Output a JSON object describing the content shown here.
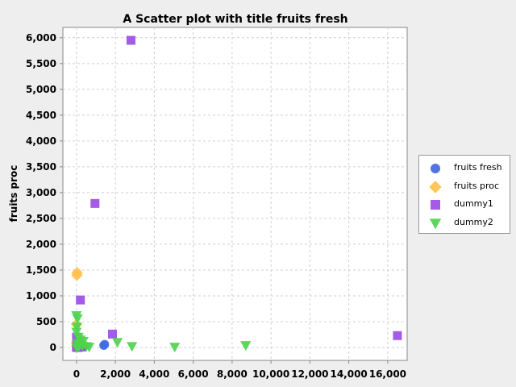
{
  "chart_data": {
    "type": "scatter",
    "title": "A Scatter plot with title fruits fresh",
    "xlabel": "",
    "ylabel": "fruits proc",
    "xlim": [
      -700,
      17000
    ],
    "ylim": [
      -250,
      6200
    ],
    "xticks": [
      0,
      2000,
      4000,
      6000,
      8000,
      10000,
      12000,
      14000,
      16000
    ],
    "xtick_labels": [
      "0",
      "2,000",
      "4,000",
      "6,000",
      "8,000",
      "10,000",
      "12,000",
      "14,000",
      "16,000"
    ],
    "yticks": [
      0,
      500,
      1000,
      1500,
      2000,
      2500,
      3000,
      3500,
      4000,
      4500,
      5000,
      5500,
      6000
    ],
    "ytick_labels": [
      "0",
      "500",
      "1,000",
      "1,500",
      "2,000",
      "2,500",
      "3,000",
      "3,500",
      "4,000",
      "4,500",
      "5,000",
      "5,500",
      "6,000"
    ],
    "grid": true,
    "legend_position": "right",
    "series": [
      {
        "name": "fruits fresh",
        "color": "#4169e1",
        "marker": "circle",
        "points": [
          [
            0,
            0
          ],
          [
            40,
            20
          ],
          [
            80,
            60
          ],
          [
            120,
            10
          ],
          [
            200,
            40
          ],
          [
            300,
            15
          ],
          [
            1400,
            40
          ],
          [
            1450,
            60
          ],
          [
            10,
            30
          ],
          [
            60,
            5
          ],
          [
            150,
            25
          ],
          [
            250,
            50
          ]
        ]
      },
      {
        "name": "fruits proc",
        "color": "#ffc14d",
        "marker": "diamond",
        "points": [
          [
            30,
            1450
          ],
          [
            20,
            1400
          ],
          [
            0,
            450
          ],
          [
            10,
            30
          ],
          [
            60,
            10
          ],
          [
            100,
            50
          ],
          [
            150,
            80
          ],
          [
            0,
            100
          ]
        ]
      },
      {
        "name": "dummy1",
        "color": "#9b4de6",
        "marker": "square",
        "points": [
          [
            2800,
            5950
          ],
          [
            950,
            2790
          ],
          [
            200,
            920
          ],
          [
            1850,
            260
          ],
          [
            16500,
            230
          ],
          [
            0,
            0
          ],
          [
            30,
            20
          ],
          [
            60,
            40
          ],
          [
            100,
            0
          ],
          [
            0,
            200
          ],
          [
            200,
            20
          ],
          [
            300,
            10
          ]
        ]
      },
      {
        "name": "dummy2",
        "color": "#4dd44d",
        "marker": "triangle-down",
        "points": [
          [
            0,
            620
          ],
          [
            50,
            560
          ],
          [
            20,
            400
          ],
          [
            0,
            300
          ],
          [
            100,
            200
          ],
          [
            200,
            150
          ],
          [
            350,
            120
          ],
          [
            50,
            80
          ],
          [
            150,
            50
          ],
          [
            300,
            30
          ],
          [
            500,
            20
          ],
          [
            650,
            10
          ],
          [
            2100,
            100
          ],
          [
            2850,
            20
          ],
          [
            5050,
            10
          ],
          [
            8700,
            40
          ],
          [
            0,
            0
          ],
          [
            100,
            5
          ]
        ]
      }
    ]
  }
}
